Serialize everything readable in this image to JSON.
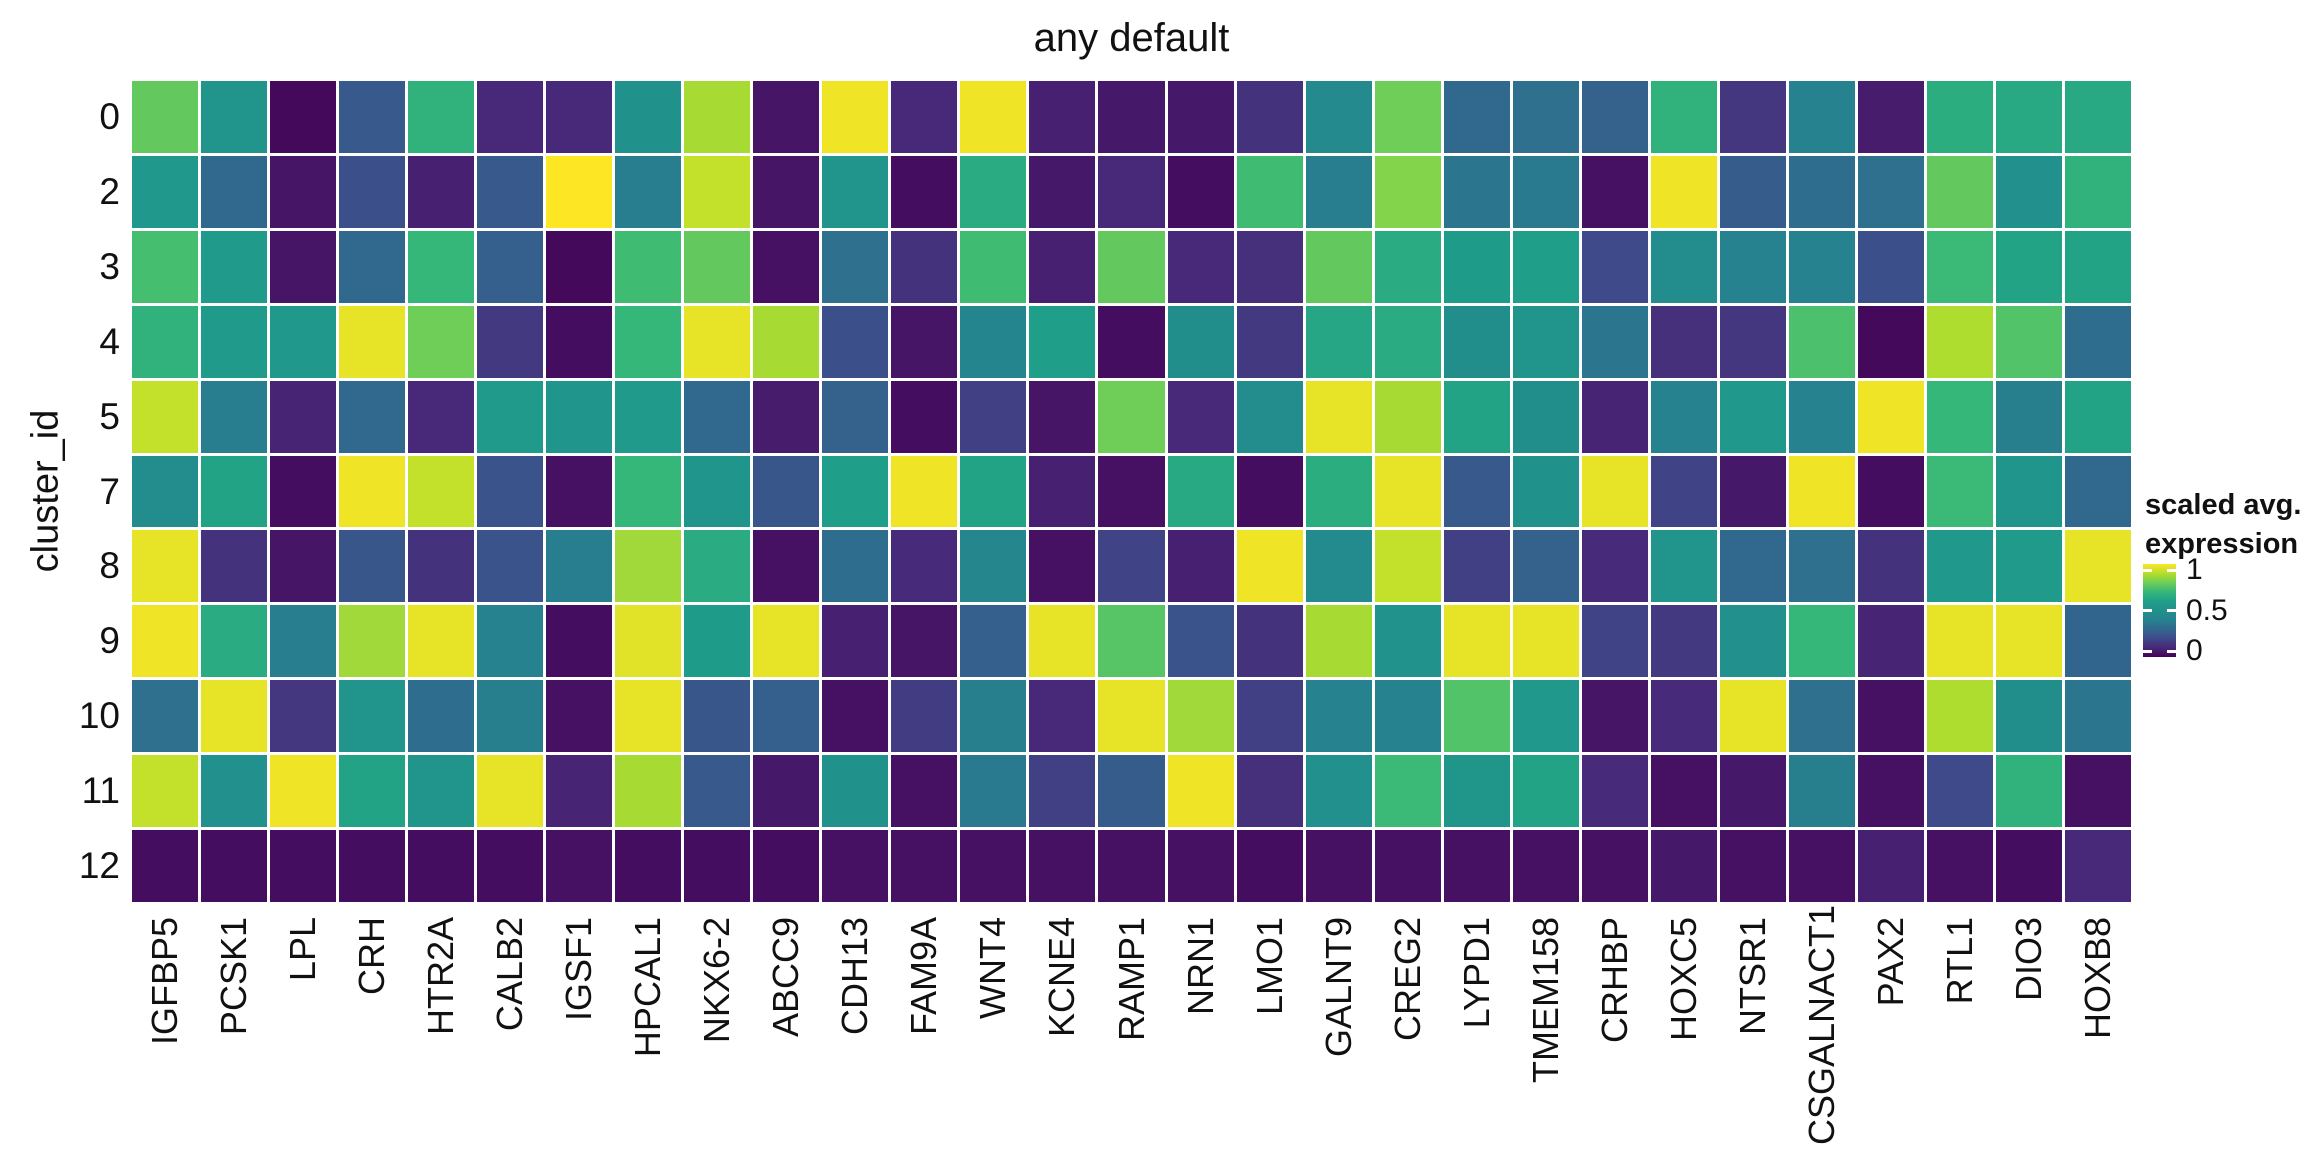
{
  "chart": {
    "title": "any default",
    "y_axis_label": "cluster_id",
    "legend": {
      "title_line1": "scaled avg.",
      "title_line2": "expression",
      "ticks": [
        "1",
        "0.5",
        "0"
      ]
    }
  },
  "chart_data": {
    "type": "heatmap",
    "title": "any default",
    "xlabel": "",
    "ylabel": "cluster_id",
    "colormap": "viridis",
    "value_range": [
      0,
      1
    ],
    "legend_title": "scaled avg. expression",
    "legend_tick_values": [
      1,
      0.5,
      0
    ],
    "colormap_stops": [
      "#440154",
      "#482878",
      "#3e4a89",
      "#31688e",
      "#26828e",
      "#21918c",
      "#1f9e89",
      "#35b779",
      "#6ece58",
      "#b5de2b",
      "#fde725"
    ],
    "columns": [
      "IGFBP5",
      "PCSK1",
      "LPL",
      "CRH",
      "HTR2A",
      "CALB2",
      "IGSF1",
      "HPCAL1",
      "NKX6-2",
      "ABCC9",
      "CDH13",
      "FAM9A",
      "WNT4",
      "KCNE4",
      "RAMP1",
      "NRN1",
      "LMO1",
      "GALNT9",
      "CREG2",
      "LYPD1",
      "TMEM158",
      "CRHBP",
      "HOXC5",
      "NTSR1",
      "CSGALNACT1",
      "PAX2",
      "RTL1",
      "DIO3",
      "HOXB8"
    ],
    "rows": [
      "0",
      "2",
      "3",
      "4",
      "5",
      "7",
      "8",
      "9",
      "10",
      "11",
      "12"
    ],
    "values": [
      [
        0.78,
        0.52,
        0.02,
        0.25,
        0.68,
        0.1,
        0.1,
        0.5,
        0.88,
        0.05,
        0.98,
        0.1,
        0.98,
        0.08,
        0.06,
        0.06,
        0.13,
        0.45,
        0.8,
        0.3,
        0.33,
        0.28,
        0.68,
        0.14,
        0.4,
        0.07,
        0.66,
        0.64,
        0.64
      ],
      [
        0.55,
        0.3,
        0.05,
        0.22,
        0.08,
        0.25,
        1.0,
        0.38,
        0.92,
        0.05,
        0.52,
        0.03,
        0.65,
        0.06,
        0.1,
        0.03,
        0.72,
        0.38,
        0.83,
        0.35,
        0.37,
        0.04,
        0.98,
        0.26,
        0.32,
        0.33,
        0.78,
        0.49,
        0.68
      ],
      [
        0.73,
        0.57,
        0.05,
        0.3,
        0.7,
        0.27,
        0.02,
        0.72,
        0.78,
        0.04,
        0.33,
        0.13,
        0.72,
        0.08,
        0.78,
        0.1,
        0.12,
        0.78,
        0.65,
        0.58,
        0.6,
        0.2,
        0.47,
        0.4,
        0.4,
        0.22,
        0.71,
        0.62,
        0.62
      ],
      [
        0.68,
        0.57,
        0.55,
        0.97,
        0.8,
        0.15,
        0.03,
        0.7,
        0.97,
        0.88,
        0.22,
        0.05,
        0.42,
        0.6,
        0.03,
        0.48,
        0.15,
        0.63,
        0.65,
        0.48,
        0.52,
        0.35,
        0.12,
        0.14,
        0.74,
        0.02,
        0.89,
        0.75,
        0.32
      ],
      [
        0.92,
        0.38,
        0.09,
        0.3,
        0.1,
        0.57,
        0.53,
        0.57,
        0.3,
        0.07,
        0.28,
        0.03,
        0.17,
        0.05,
        0.8,
        0.1,
        0.47,
        0.97,
        0.88,
        0.62,
        0.48,
        0.09,
        0.4,
        0.55,
        0.4,
        0.98,
        0.7,
        0.39,
        0.62
      ],
      [
        0.47,
        0.62,
        0.03,
        0.98,
        0.92,
        0.23,
        0.04,
        0.7,
        0.53,
        0.24,
        0.6,
        0.98,
        0.62,
        0.08,
        0.04,
        0.64,
        0.03,
        0.66,
        0.97,
        0.25,
        0.5,
        0.97,
        0.18,
        0.06,
        0.98,
        0.03,
        0.71,
        0.53,
        0.3
      ],
      [
        0.97,
        0.13,
        0.05,
        0.24,
        0.13,
        0.23,
        0.38,
        0.87,
        0.65,
        0.04,
        0.32,
        0.11,
        0.43,
        0.04,
        0.18,
        0.08,
        0.98,
        0.46,
        0.92,
        0.17,
        0.28,
        0.11,
        0.52,
        0.3,
        0.33,
        0.13,
        0.55,
        0.57,
        0.97
      ],
      [
        0.98,
        0.65,
        0.38,
        0.87,
        0.97,
        0.4,
        0.03,
        0.96,
        0.58,
        0.97,
        0.08,
        0.05,
        0.27,
        0.97,
        0.76,
        0.23,
        0.13,
        0.88,
        0.51,
        0.97,
        0.97,
        0.18,
        0.15,
        0.49,
        0.7,
        0.09,
        0.97,
        0.97,
        0.29
      ],
      [
        0.33,
        0.97,
        0.14,
        0.52,
        0.32,
        0.39,
        0.04,
        0.97,
        0.24,
        0.27,
        0.04,
        0.16,
        0.39,
        0.1,
        0.97,
        0.87,
        0.17,
        0.4,
        0.4,
        0.75,
        0.55,
        0.05,
        0.11,
        0.97,
        0.33,
        0.04,
        0.89,
        0.48,
        0.35
      ],
      [
        0.92,
        0.49,
        0.98,
        0.62,
        0.52,
        0.97,
        0.09,
        0.88,
        0.25,
        0.06,
        0.5,
        0.04,
        0.37,
        0.17,
        0.26,
        0.98,
        0.12,
        0.49,
        0.71,
        0.54,
        0.62,
        0.11,
        0.04,
        0.06,
        0.39,
        0.04,
        0.2,
        0.68,
        0.04
      ],
      [
        0.03,
        0.03,
        0.03,
        0.03,
        0.03,
        0.03,
        0.04,
        0.03,
        0.03,
        0.03,
        0.04,
        0.04,
        0.04,
        0.04,
        0.04,
        0.04,
        0.03,
        0.04,
        0.04,
        0.04,
        0.04,
        0.04,
        0.06,
        0.04,
        0.04,
        0.08,
        0.04,
        0.03,
        0.1
      ]
    ]
  }
}
